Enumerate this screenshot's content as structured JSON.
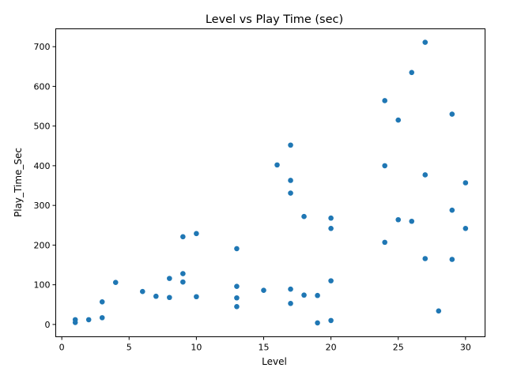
{
  "chart_data": {
    "type": "scatter",
    "title": "Level vs Play Time (sec)",
    "xlabel": "Level",
    "ylabel": "Play_Time_Sec",
    "xlim": [
      -0.45,
      31.45
    ],
    "ylim": [
      -31,
      745
    ],
    "xticks": [
      0,
      5,
      10,
      15,
      20,
      25,
      30
    ],
    "yticks": [
      0,
      100,
      200,
      300,
      400,
      500,
      600,
      700
    ],
    "grid": false,
    "marker_color": "#1f77b4",
    "points": [
      {
        "x": 27,
        "y": 711
      },
      {
        "x": 26,
        "y": 635
      },
      {
        "x": 24,
        "y": 564
      },
      {
        "x": 29,
        "y": 530
      },
      {
        "x": 25,
        "y": 515
      },
      {
        "x": 17,
        "y": 452
      },
      {
        "x": 16,
        "y": 402
      },
      {
        "x": 24,
        "y": 400
      },
      {
        "x": 27,
        "y": 377
      },
      {
        "x": 17,
        "y": 363
      },
      {
        "x": 30,
        "y": 357
      },
      {
        "x": 17,
        "y": 331
      },
      {
        "x": 29,
        "y": 288
      },
      {
        "x": 18,
        "y": 272
      },
      {
        "x": 20,
        "y": 268
      },
      {
        "x": 25,
        "y": 264
      },
      {
        "x": 26,
        "y": 260
      },
      {
        "x": 20,
        "y": 242
      },
      {
        "x": 30,
        "y": 242
      },
      {
        "x": 10,
        "y": 229
      },
      {
        "x": 9,
        "y": 221
      },
      {
        "x": 24,
        "y": 207
      },
      {
        "x": 13,
        "y": 191
      },
      {
        "x": 27,
        "y": 166
      },
      {
        "x": 29,
        "y": 164
      },
      {
        "x": 9,
        "y": 128
      },
      {
        "x": 8,
        "y": 116
      },
      {
        "x": 20,
        "y": 110
      },
      {
        "x": 9,
        "y": 107
      },
      {
        "x": 4,
        "y": 106
      },
      {
        "x": 13,
        "y": 96
      },
      {
        "x": 17,
        "y": 89
      },
      {
        "x": 15,
        "y": 86
      },
      {
        "x": 6,
        "y": 83
      },
      {
        "x": 18,
        "y": 74
      },
      {
        "x": 19,
        "y": 73
      },
      {
        "x": 7,
        "y": 71
      },
      {
        "x": 10,
        "y": 70
      },
      {
        "x": 8,
        "y": 68
      },
      {
        "x": 13,
        "y": 67
      },
      {
        "x": 3,
        "y": 57
      },
      {
        "x": 17,
        "y": 53
      },
      {
        "x": 13,
        "y": 45
      },
      {
        "x": 28,
        "y": 34
      },
      {
        "x": 3,
        "y": 17
      },
      {
        "x": 1,
        "y": 12
      },
      {
        "x": 2,
        "y": 12
      },
      {
        "x": 20,
        "y": 10
      },
      {
        "x": 1,
        "y": 5
      },
      {
        "x": 19,
        "y": 4
      }
    ]
  }
}
